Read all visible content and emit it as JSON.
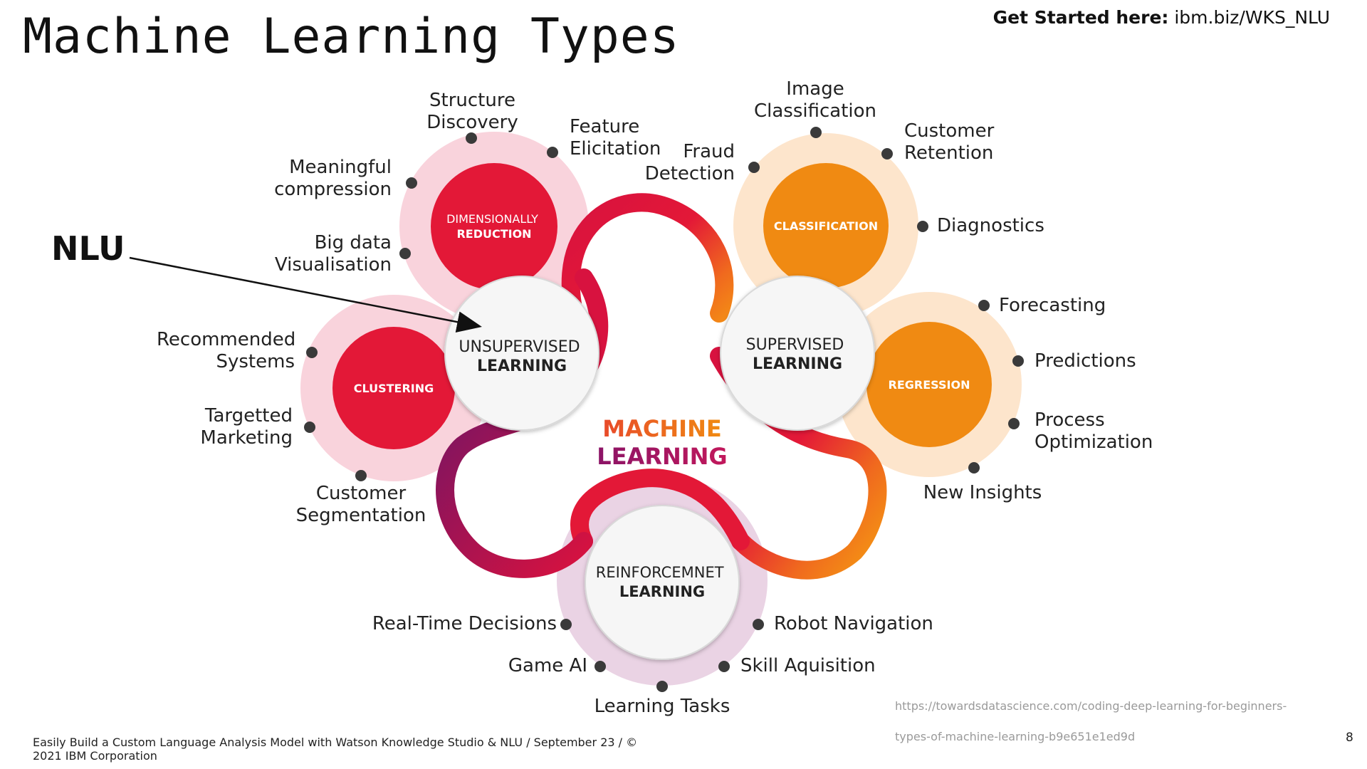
{
  "title": "Machine Learning Types",
  "top_link": {
    "bold": "Get Started here:",
    "url": "ibm.biz/WKS_NLU"
  },
  "annotation": "NLU",
  "center": {
    "line1": "MACHINE",
    "line2": "LEARNING"
  },
  "hubs": {
    "unsupervised": {
      "line1": "UNSUPERVISED",
      "line2": "LEARNING"
    },
    "supervised": {
      "line1": "SUPERVISED",
      "line2": "LEARNING"
    },
    "reinforcement": {
      "line1": "REINFORCEMNET",
      "line2": "LEARNING"
    }
  },
  "categories": {
    "dimensionality": {
      "line1": "DIMENSIONALLY",
      "line2": "REDUCTION"
    },
    "clustering": "CLUSTERING",
    "classification": "CLASSIFICATION",
    "regression": "REGRESSION"
  },
  "labels": {
    "structure_discovery": "Structure\nDiscovery",
    "feature_elicitation": "Feature\nElicitation",
    "meaningful_compression": "Meaningful\ncompression",
    "big_data": "Big data\nVisualisation",
    "recommended_systems": "Recommended\nSystems",
    "targetted_marketing": "Targetted\nMarketing",
    "customer_segmentation": "Customer\nSegmentation",
    "image_classification": "Image\nClassification",
    "customer_retention": "Customer\nRetention",
    "fraud_detection": "Fraud\nDetection",
    "diagnostics": "Diagnostics",
    "forecasting": "Forecasting",
    "predictions": "Predictions",
    "process_optimization": "Process\nOptimization",
    "new_insights": "New Insights",
    "real_time_decisions": "Real-Time Decisions",
    "robot_navigation": "Robot Navigation",
    "game_ai": "Game AI",
    "skill_aquisition": "Skill Aquisition",
    "learning_tasks": "Learning Tasks"
  },
  "footer": "Easily Build a Custom Language Analysis Model with Watson Knowledge Studio & NLU / September 23 / © 2021 IBM Corporation",
  "source_line1": "https://towardsdatascience.com/coding-deep-learning-for-beginners-",
  "source_line2": "types-of-machine-learning-b9e651e1ed9d",
  "page_number": "8",
  "colors": {
    "red": "#e31837",
    "orange": "#f08a12",
    "pink_halo": "#f9d3dc",
    "peach_halo": "#fde5cc",
    "lilac_halo": "#ead3e4",
    "dot": "#3a3a3a"
  }
}
